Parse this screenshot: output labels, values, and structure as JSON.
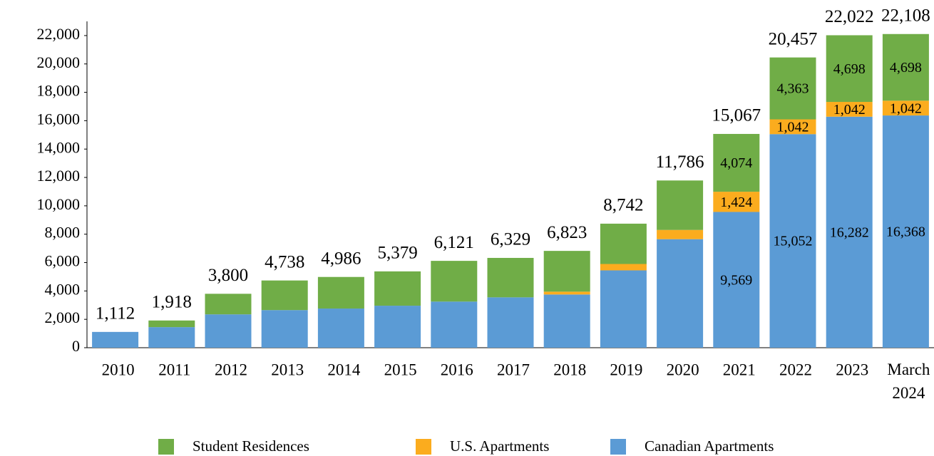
{
  "chart_data": {
    "type": "stacked_bar",
    "categories": [
      "2010",
      "2011",
      "2012",
      "2013",
      "2014",
      "2015",
      "2016",
      "2017",
      "2018",
      "2019",
      "2020",
      "2021",
      "2022",
      "2023",
      "March 2024"
    ],
    "series": [
      {
        "name": "Student Residences",
        "color": "#70ad47",
        "values": [
          0,
          468,
          1450,
          2088,
          2226,
          2419,
          2871,
          2779,
          2873,
          2842,
          3486,
          4074,
          4363,
          4698,
          4698
        ],
        "value_labels": [
          null,
          null,
          null,
          null,
          null,
          null,
          null,
          null,
          null,
          null,
          null,
          "4,074",
          "4,363",
          "4,698",
          "4,698"
        ]
      },
      {
        "name": "U.S. Apartments",
        "color": "#fbac1e",
        "values": [
          0,
          0,
          0,
          0,
          0,
          0,
          0,
          0,
          200,
          450,
          650,
          1424,
          1042,
          1042,
          1042
        ],
        "value_labels": [
          null,
          null,
          null,
          null,
          null,
          null,
          null,
          null,
          null,
          null,
          null,
          "1,424",
          "1,042",
          "1,042",
          "1,042"
        ]
      },
      {
        "name": "Canadian Apartments",
        "color": "#5b9bd5",
        "values": [
          1112,
          1450,
          2350,
          2650,
          2760,
          2960,
          3250,
          3550,
          3750,
          5450,
          7650,
          9569,
          15052,
          16282,
          16368
        ],
        "value_labels": [
          null,
          null,
          null,
          null,
          null,
          null,
          null,
          null,
          null,
          null,
          null,
          "9,569",
          "15,052",
          "16,282",
          "16,368"
        ]
      }
    ],
    "totals": [
      1112,
      1918,
      3800,
      4738,
      4986,
      5379,
      6121,
      6329,
      6823,
      8742,
      11786,
      15067,
      20457,
      22022,
      22108
    ],
    "total_labels": [
      "1,112",
      "1,918",
      "3,800",
      "4,738",
      "4,986",
      "5,379",
      "6,121",
      "6,329",
      "6,823",
      "8,742",
      "11,786",
      "15,067",
      "20,457",
      "22,022",
      "22,108"
    ],
    "ylim": [
      0,
      23000
    ],
    "yticks": [
      0,
      {
        "value": 2000,
        "label": "2,000"
      },
      {
        "value": 4000,
        "label": "4,000"
      },
      {
        "value": 6000,
        "label": "6,000"
      },
      {
        "value": 8000,
        "label": "8,000"
      },
      {
        "value": 10000,
        "label": "10,000"
      },
      {
        "value": 12000,
        "label": "12,000"
      },
      {
        "value": 14000,
        "label": "14,000"
      },
      {
        "value": 16000,
        "label": "16,000"
      },
      {
        "value": 18000,
        "label": "18,000"
      },
      {
        "value": 20000,
        "label": "20,000"
      },
      {
        "value": 22000,
        "label": "22,000"
      }
    ],
    "grid": false,
    "legend": "bottom"
  }
}
